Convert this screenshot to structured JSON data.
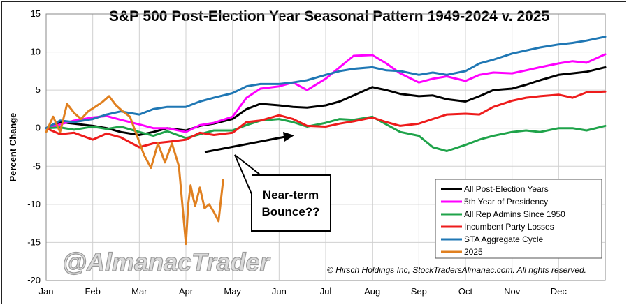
{
  "chart_data": {
    "type": "line",
    "title": "S&P 500 Post-Election Year Seasonal Pattern 1949-2024 v. 2025",
    "ylabel": "Percent Change",
    "xlabel": "",
    "ylim": [
      -20,
      15
    ],
    "yticks": [
      "15",
      "10",
      "5",
      "0",
      "-5",
      "-10",
      "-15",
      "-20"
    ],
    "ytick_values": [
      15,
      10,
      5,
      0,
      -5,
      -10,
      -15,
      -20
    ],
    "months": [
      "Jan",
      "Feb",
      "Mar",
      "Apr",
      "May",
      "Jun",
      "Jul",
      "Aug",
      "Sep",
      "Oct",
      "Nov",
      "Dec"
    ],
    "grid": true,
    "legend_position": "bottom-right",
    "x_unit": "month (0 = start of Jan, 12 = end of Dec)",
    "series": [
      {
        "name": "All Post-Election Years",
        "color": "#000000",
        "x": [
          0,
          0.3,
          0.6,
          1.0,
          1.3,
          1.6,
          2.0,
          2.3,
          2.6,
          3.0,
          3.3,
          3.6,
          4.0,
          4.3,
          4.6,
          5.0,
          5.3,
          5.6,
          6.0,
          6.3,
          6.6,
          7.0,
          7.3,
          7.6,
          8.0,
          8.3,
          8.6,
          9.0,
          9.3,
          9.6,
          10.0,
          10.3,
          10.6,
          11.0,
          11.3,
          11.6,
          12.0
        ],
        "y": [
          0,
          0.8,
          0.6,
          0.3,
          0,
          -0.5,
          -0.9,
          -0.5,
          0,
          -0.3,
          0.3,
          0.6,
          1.2,
          2.5,
          3.2,
          3.0,
          2.8,
          2.7,
          3.0,
          3.5,
          4.3,
          5.4,
          5.0,
          4.5,
          4.2,
          4.3,
          3.8,
          3.5,
          4.2,
          5.0,
          5.2,
          5.7,
          6.3,
          7.0,
          7.2,
          7.4,
          8.0
        ]
      },
      {
        "name": "5th Year of Presidency",
        "color": "#ff00ff",
        "x": [
          0,
          0.3,
          0.6,
          1.0,
          1.3,
          1.6,
          2.0,
          2.3,
          2.6,
          3.0,
          3.3,
          3.6,
          4.0,
          4.3,
          4.6,
          5.0,
          5.3,
          5.6,
          6.0,
          6.3,
          6.6,
          7.0,
          7.3,
          7.6,
          8.0,
          8.3,
          8.6,
          9.0,
          9.3,
          9.6,
          10.0,
          10.3,
          10.6,
          11.0,
          11.3,
          11.6,
          12.0
        ],
        "y": [
          0,
          0.5,
          1.0,
          1.4,
          1.6,
          1.1,
          0.5,
          0.0,
          0.0,
          -0.5,
          0.4,
          0.7,
          1.5,
          4.0,
          5.2,
          5.5,
          6.0,
          5.0,
          6.5,
          8.0,
          9.5,
          9.6,
          8.5,
          7.2,
          6.0,
          6.5,
          6.8,
          6.2,
          7.0,
          7.3,
          7.2,
          7.6,
          8.0,
          8.5,
          8.8,
          8.6,
          9.7
        ]
      },
      {
        "name": "All Rep Admins Since 1950",
        "color": "#1fa34a",
        "x": [
          0,
          0.3,
          0.6,
          1.0,
          1.3,
          1.6,
          2.0,
          2.3,
          2.6,
          3.0,
          3.3,
          3.6,
          4.0,
          4.3,
          4.6,
          5.0,
          5.3,
          5.6,
          6.0,
          6.3,
          6.6,
          7.0,
          7.3,
          7.6,
          8.0,
          8.3,
          8.6,
          9.0,
          9.3,
          9.6,
          10.0,
          10.3,
          10.6,
          11.0,
          11.3,
          11.6,
          12.0
        ],
        "y": [
          0,
          0.1,
          -0.2,
          0.2,
          -0.1,
          0.2,
          -0.5,
          -1.0,
          -0.4,
          -1.3,
          -0.8,
          -0.3,
          -0.3,
          0.4,
          1.0,
          1.2,
          0.8,
          0.2,
          0.7,
          1.2,
          1.1,
          1.5,
          0.5,
          -0.5,
          -1.0,
          -2.5,
          -3.0,
          -2.2,
          -1.5,
          -1.0,
          -0.5,
          -0.3,
          -0.5,
          0.0,
          0.0,
          -0.3,
          0.3
        ]
      },
      {
        "name": "Incumbent Party Losses",
        "color": "#ee1c1c",
        "x": [
          0,
          0.3,
          0.6,
          1.0,
          1.3,
          1.6,
          2.0,
          2.3,
          2.6,
          3.0,
          3.3,
          3.6,
          4.0,
          4.3,
          4.6,
          5.0,
          5.3,
          5.6,
          6.0,
          6.3,
          6.6,
          7.0,
          7.3,
          7.6,
          8.0,
          8.3,
          8.6,
          9.0,
          9.3,
          9.6,
          10.0,
          10.3,
          10.6,
          11.0,
          11.3,
          11.6,
          12.0
        ],
        "y": [
          0,
          -0.8,
          -0.6,
          -1.5,
          -0.7,
          -1.2,
          -2.5,
          -2.0,
          -1.8,
          -1.5,
          -0.6,
          -0.9,
          -0.6,
          0.8,
          1.0,
          1.7,
          1.2,
          0.3,
          0.2,
          0.6,
          0.9,
          1.4,
          0.8,
          0.3,
          0.6,
          1.2,
          1.8,
          1.9,
          1.8,
          2.8,
          3.6,
          4.0,
          4.2,
          4.4,
          4.0,
          4.7,
          4.8
        ]
      },
      {
        "name": "STA Aggregate Cycle",
        "color": "#1f77b4",
        "x": [
          0,
          0.3,
          0.6,
          1.0,
          1.3,
          1.6,
          2.0,
          2.3,
          2.6,
          3.0,
          3.3,
          3.6,
          4.0,
          4.3,
          4.6,
          5.0,
          5.3,
          5.6,
          6.0,
          6.3,
          6.6,
          7.0,
          7.3,
          7.6,
          8.0,
          8.3,
          8.6,
          9.0,
          9.3,
          9.6,
          10.0,
          10.3,
          10.6,
          11.0,
          11.3,
          11.6,
          12.0
        ],
        "y": [
          0,
          1.0,
          0.8,
          1.2,
          1.8,
          2.2,
          1.8,
          2.5,
          2.8,
          2.8,
          3.5,
          4.0,
          4.6,
          5.5,
          5.8,
          5.8,
          6.0,
          6.3,
          7.0,
          7.5,
          7.8,
          8.0,
          7.6,
          7.5,
          7.0,
          7.3,
          7.0,
          7.5,
          8.5,
          9.0,
          9.8,
          10.2,
          10.6,
          11.0,
          11.2,
          11.5,
          12.0
        ]
      },
      {
        "name": "2025",
        "color": "#e08020",
        "x": [
          0,
          0.15,
          0.3,
          0.45,
          0.6,
          0.75,
          0.9,
          1.05,
          1.2,
          1.35,
          1.5,
          1.65,
          1.8,
          1.95,
          2.1,
          2.25,
          2.4,
          2.55,
          2.7,
          2.85,
          3.0,
          3.05,
          3.1,
          3.15,
          3.2,
          3.3,
          3.4,
          3.5,
          3.6,
          3.7,
          3.8
        ],
        "y": [
          -0.5,
          1.5,
          -0.5,
          3.2,
          2.0,
          1.2,
          2.2,
          2.8,
          3.4,
          4.2,
          3.0,
          2.2,
          1.5,
          -1.0,
          -3.5,
          -5.2,
          -2.0,
          -4.5,
          -2.0,
          -5.0,
          -15.2,
          -10.0,
          -7.5,
          -9.0,
          -10.2,
          -7.8,
          -10.5,
          -10.0,
          -11.0,
          -12.2,
          -6.8
        ]
      }
    ],
    "annotations": {
      "callout": [
        "Near-term",
        "Bounce??"
      ],
      "copyright": "© Hirsch Holdings Inc, StockTradersAlmanac.com. All rights reserved.",
      "watermark": "@AlmanacTrader"
    }
  }
}
